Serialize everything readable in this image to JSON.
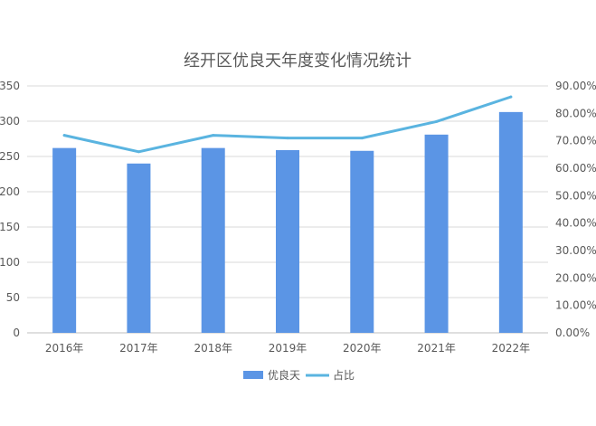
{
  "chart_data": {
    "type": "bar",
    "title": "经开区优良天年度变化情况统计",
    "categories": [
      "2016年",
      "2017年",
      "2018年",
      "2019年",
      "2020年",
      "2021年",
      "2022年"
    ],
    "series": [
      {
        "name": "优良天",
        "type": "bar",
        "axis": "left",
        "color": "#5b95e5",
        "values": [
          262,
          240,
          262,
          259,
          258,
          281,
          313
        ]
      },
      {
        "name": "占比",
        "type": "line",
        "axis": "right",
        "color": "#5ab4e0",
        "values": [
          0.72,
          0.66,
          0.72,
          0.71,
          0.71,
          0.77,
          0.86
        ]
      }
    ],
    "y_left": {
      "min": 0,
      "max": 350,
      "step": 50,
      "ticks": [
        "0",
        "50",
        "100",
        "150",
        "200",
        "250",
        "300",
        "350"
      ]
    },
    "y_right": {
      "min": 0,
      "max": 0.9,
      "step": 0.1,
      "ticks": [
        "0.00%",
        "10.00%",
        "20.00%",
        "30.00%",
        "40.00%",
        "50.00%",
        "60.00%",
        "70.00%",
        "80.00%",
        "90.00%"
      ]
    },
    "grid": true,
    "legend_position": "bottom"
  }
}
